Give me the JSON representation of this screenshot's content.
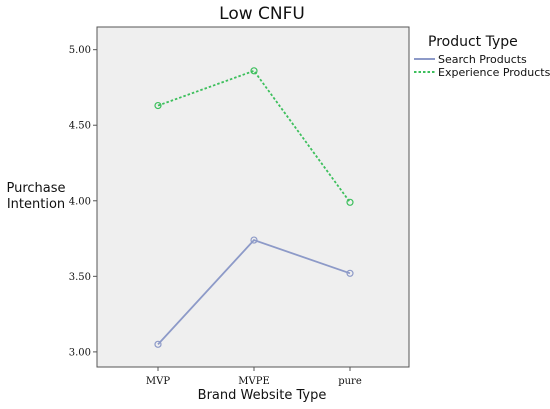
{
  "chart_data": {
    "type": "line",
    "title": "Low CNFU",
    "xlabel": "Brand Website Type",
    "ylabel": [
      "Purchase",
      "Intention"
    ],
    "categories": [
      "MVP",
      "MVPE",
      "pure"
    ],
    "ylim": [
      2.9,
      5.15
    ],
    "yticks": [
      3.0,
      3.5,
      4.0,
      4.5,
      5.0
    ],
    "ytick_labels": [
      "3.00",
      "3.50",
      "4.00",
      "4.50",
      "5.00"
    ],
    "grid": false,
    "legend_placement": "top-right outside",
    "legend_title": "Product Type",
    "series": [
      {
        "name": "Search Products",
        "values": [
          3.05,
          3.74,
          3.52
        ],
        "color": "#8d9ac8",
        "dash": "solid"
      },
      {
        "name": "Experience Products",
        "values": [
          4.63,
          4.86,
          3.99
        ],
        "color": "#3cbf5c",
        "dash": "dotted"
      }
    ],
    "plot_background": "#efefef"
  }
}
